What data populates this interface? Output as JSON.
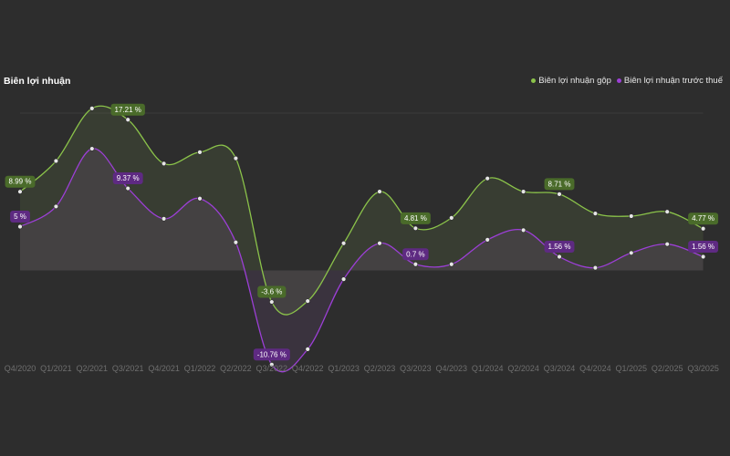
{
  "chart_data": {
    "type": "line",
    "title": "Biên lợi nhuận",
    "xlabel": "",
    "ylabel": "",
    "ylim": [
      -12,
      19
    ],
    "categories": [
      "Q4/2020",
      "Q1/2021",
      "Q2/2021",
      "Q3/2021",
      "Q4/2021",
      "Q1/2022",
      "Q2/2022",
      "Q3/2022",
      "Q4/2022",
      "Q1/2023",
      "Q2/2023",
      "Q3/2023",
      "Q4/2023",
      "Q1/2024",
      "Q2/2024",
      "Q3/2024",
      "Q4/2024",
      "Q1/2025",
      "Q2/2025",
      "Q3/2025"
    ],
    "series": [
      {
        "name": "Biên lợi nhuận gộp",
        "color": "#8bc34a",
        "label_bg": "#4a6b2a",
        "values": [
          8.99,
          12.5,
          18.5,
          17.21,
          12.2,
          13.5,
          12.8,
          -3.6,
          -3.5,
          3.1,
          9.0,
          4.81,
          6.0,
          10.5,
          9.0,
          8.71,
          6.5,
          6.2,
          6.7,
          4.77
        ],
        "labels": {
          "0": "8.99 %",
          "3": "17.21 %",
          "7": "-3.6 %",
          "11": "4.81 %",
          "15": "8.71 %",
          "19": "4.77 %"
        }
      },
      {
        "name": "Biên lợi nhuận trước thuế",
        "color": "#9c3fd6",
        "label_bg": "#5e2a82",
        "values": [
          5.0,
          7.3,
          13.9,
          9.37,
          5.9,
          8.2,
          3.2,
          -10.76,
          -9.0,
          -1.0,
          3.1,
          0.7,
          0.7,
          3.5,
          4.6,
          1.56,
          0.3,
          2.0,
          3.0,
          1.56
        ],
        "labels": {
          "0": "5 %",
          "3": "9.37 %",
          "7": "-10.76 %",
          "11": "0.7 %",
          "15": "1.56 %",
          "19": "1.56 %"
        }
      }
    ],
    "fill_area": true,
    "legend_position": "top-right"
  }
}
